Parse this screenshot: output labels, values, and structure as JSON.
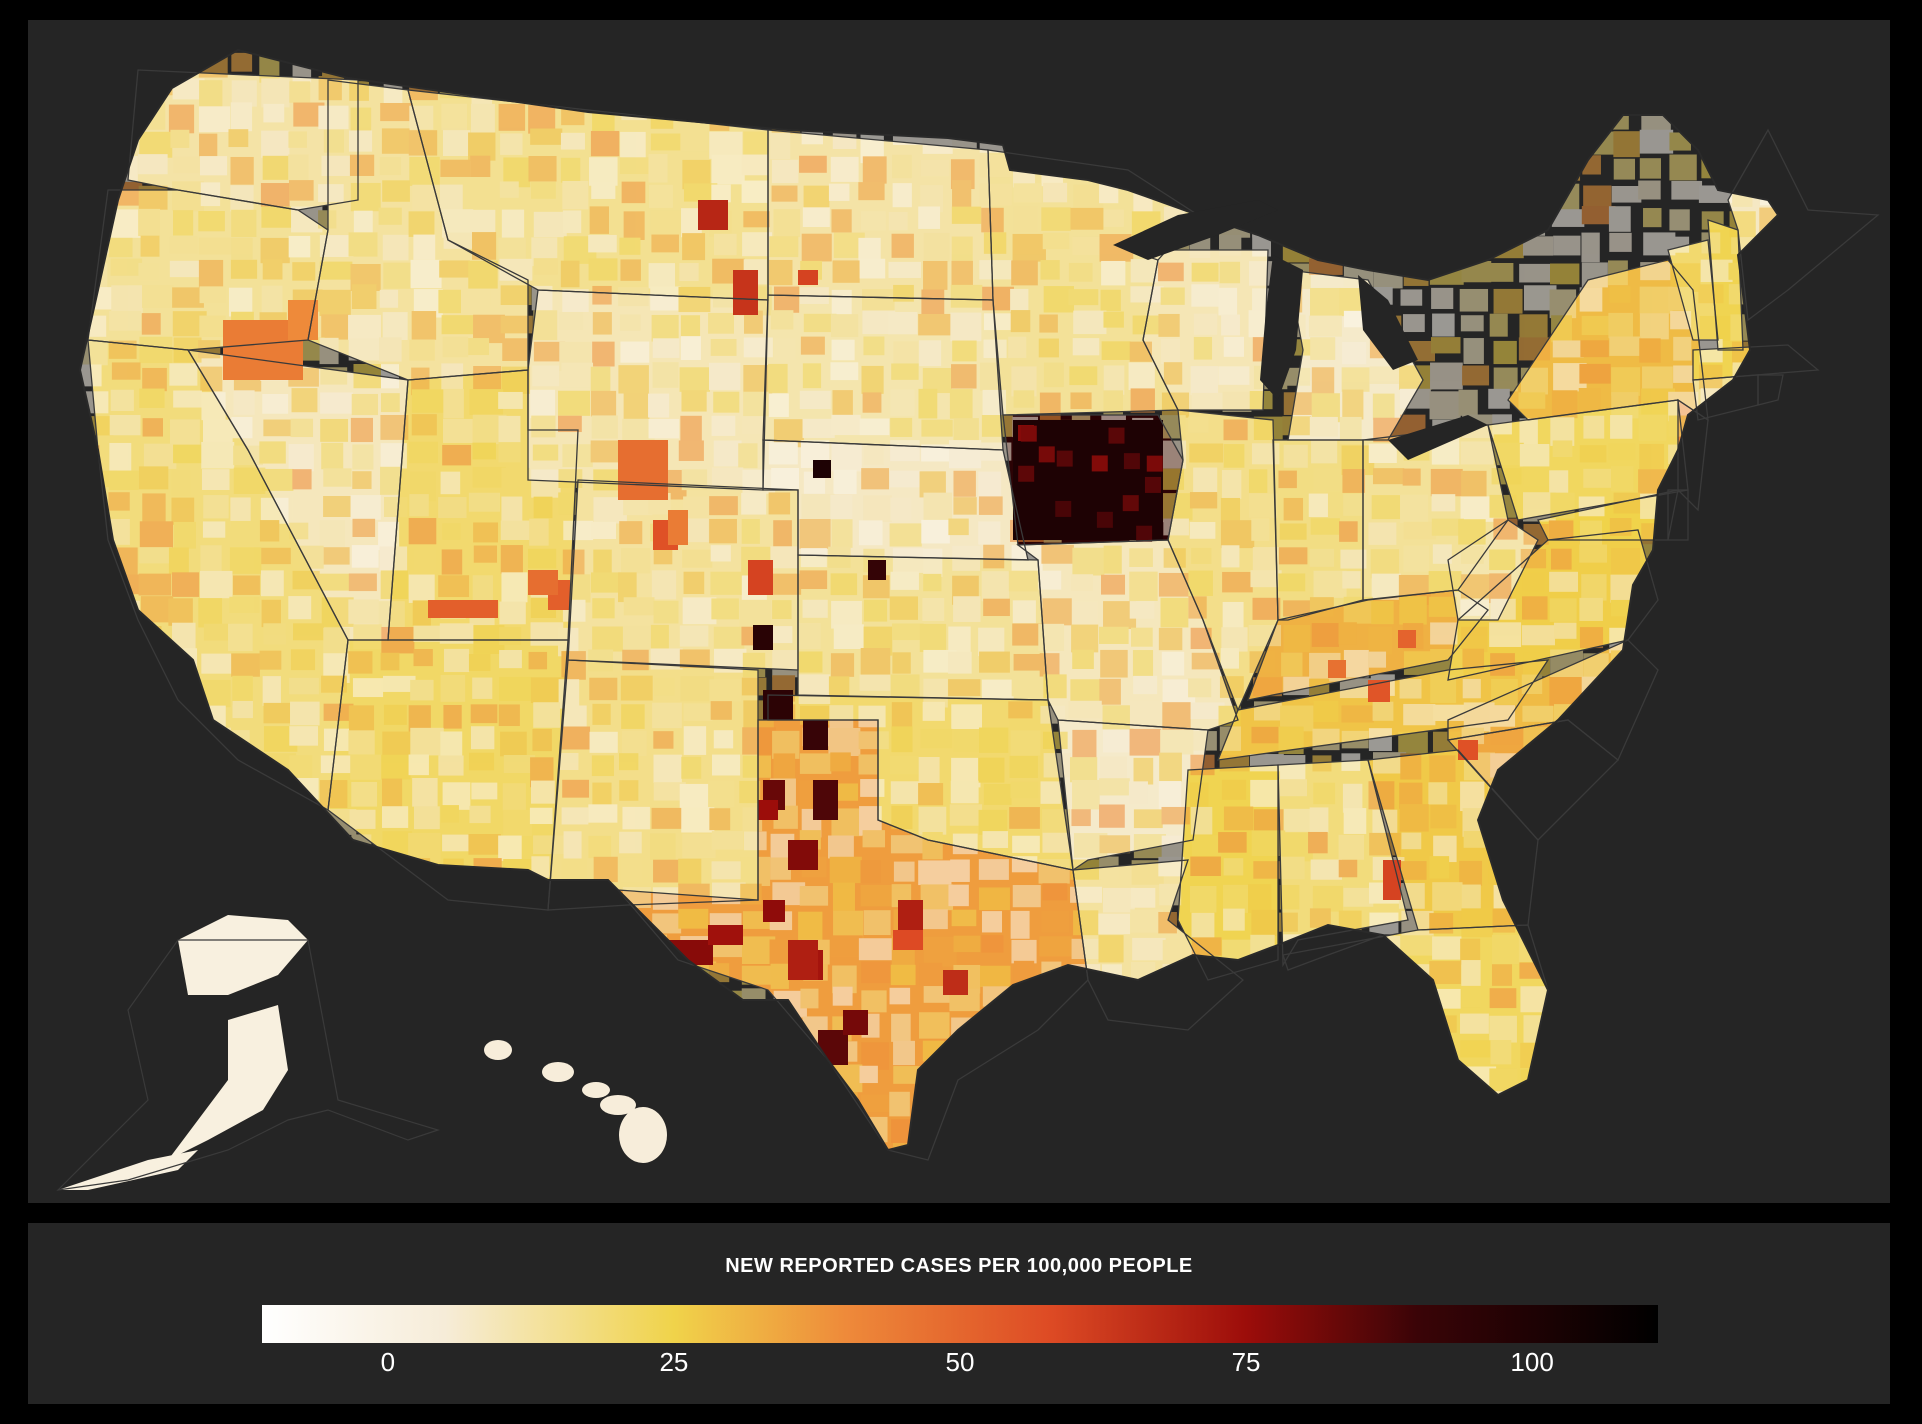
{
  "legend": {
    "title": "NEW REPORTED CASES PER 100,000 PEOPLE",
    "ticks": [
      "0",
      "25",
      "50",
      "75",
      "100"
    ],
    "tick_values": [
      0,
      25,
      50,
      75,
      100
    ],
    "range": [
      -11,
      111
    ],
    "color_stops": [
      {
        "value": -11,
        "color": "#ffffff"
      },
      {
        "value": 5,
        "color": "#f6ecd8"
      },
      {
        "value": 25,
        "color": "#f0d34a"
      },
      {
        "value": 40,
        "color": "#ee8a3a"
      },
      {
        "value": 58,
        "color": "#dd4a24"
      },
      {
        "value": 75,
        "color": "#9c0d0a"
      },
      {
        "value": 90,
        "color": "#3a0407"
      },
      {
        "value": 111,
        "color": "#000000"
      }
    ]
  },
  "colors": {
    "background": "#000000",
    "panel": "#252525",
    "border": "#333333",
    "no_data": "#2f2f2f",
    "text": "#ffffff"
  },
  "map": {
    "regions": [
      {
        "name": "washington",
        "value": 12
      },
      {
        "name": "oregon",
        "value": 14
      },
      {
        "name": "california",
        "value": 18
      },
      {
        "name": "nevada",
        "value": 9
      },
      {
        "name": "idaho",
        "value": 13
      },
      {
        "name": "utah",
        "value": 20
      },
      {
        "name": "arizona",
        "value": 21
      },
      {
        "name": "montana",
        "value": 15
      },
      {
        "name": "wyoming",
        "value": 10
      },
      {
        "name": "colorado",
        "value": 13
      },
      {
        "name": "new-mexico",
        "value": 16
      },
      {
        "name": "north-dakota",
        "value": 12
      },
      {
        "name": "south-dakota",
        "value": 11
      },
      {
        "name": "nebraska",
        "value": 8
      },
      {
        "name": "kansas",
        "value": 14
      },
      {
        "name": "oklahoma",
        "value": 20
      },
      {
        "name": "texas",
        "value": 36
      },
      {
        "name": "minnesota",
        "value": 14
      },
      {
        "name": "iowa",
        "value": 95
      },
      {
        "name": "missouri",
        "value": 9
      },
      {
        "name": "arkansas",
        "value": 7
      },
      {
        "name": "louisiana",
        "value": 13
      },
      {
        "name": "wisconsin",
        "value": 10
      },
      {
        "name": "illinois",
        "value": 16
      },
      {
        "name": "michigan",
        "value": 7
      },
      {
        "name": "indiana",
        "value": 17
      },
      {
        "name": "ohio",
        "value": 14
      },
      {
        "name": "kentucky",
        "value": 32
      },
      {
        "name": "tennessee",
        "value": 28
      },
      {
        "name": "mississippi",
        "value": 24
      },
      {
        "name": "alabama",
        "value": 18
      },
      {
        "name": "georgia",
        "value": 27
      },
      {
        "name": "florida",
        "value": 22
      },
      {
        "name": "south-carolina",
        "value": 34
      },
      {
        "name": "north-carolina",
        "value": 30
      },
      {
        "name": "virginia",
        "value": 26
      },
      {
        "name": "west-virginia",
        "value": 11
      },
      {
        "name": "pennsylvania",
        "value": 22
      },
      {
        "name": "new-york",
        "value": 30
      },
      {
        "name": "new-jersey",
        "value": 40
      },
      {
        "name": "maryland",
        "value": 25
      },
      {
        "name": "delaware",
        "value": 22
      },
      {
        "name": "vermont",
        "value": 20
      },
      {
        "name": "new-hampshire",
        "value": 24
      },
      {
        "name": "maine",
        "value": 8
      },
      {
        "name": "massachusetts",
        "value": 24
      },
      {
        "name": "connecticut",
        "value": 14
      },
      {
        "name": "rhode-island",
        "value": 4
      },
      {
        "name": "alaska",
        "value": 2
      },
      {
        "name": "hawaii",
        "value": 4
      }
    ],
    "hotspots": [
      {
        "name": "iowa-core",
        "value": 100
      },
      {
        "name": "texas-panhandle",
        "value": 95
      },
      {
        "name": "south-texas",
        "value": 85
      },
      {
        "name": "west-texas",
        "value": 78
      },
      {
        "name": "central-texas",
        "value": 70
      },
      {
        "name": "colorado-east",
        "value": 60
      },
      {
        "name": "montana-east",
        "value": 68
      },
      {
        "name": "kentucky-central",
        "value": 55
      },
      {
        "name": "georgia-south",
        "value": 60
      },
      {
        "name": "north-carolina-central",
        "value": 50
      },
      {
        "name": "nebraska-west",
        "value": 100
      },
      {
        "name": "utah-south",
        "value": 52
      },
      {
        "name": "oregon-central",
        "value": 44
      },
      {
        "name": "wyoming-central",
        "value": 48
      }
    ]
  }
}
